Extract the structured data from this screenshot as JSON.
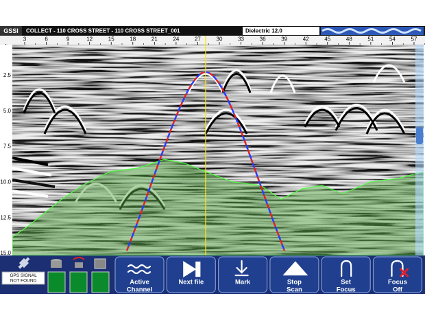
{
  "header": {
    "logo": "GSSI",
    "title": "COLLECT - 110 CROSS STREET - 110 CROSS STREET_001",
    "dielectric": "Dielectric 12.0"
  },
  "ruler": {
    "unit": "ft",
    "labels": [
      "3",
      "6",
      "9",
      "12",
      "15",
      "18",
      "21",
      "24",
      "27",
      "30",
      "33",
      "36",
      "39",
      "42",
      "45",
      "48",
      "51",
      "54",
      "57"
    ]
  },
  "depth_axis": {
    "labels": [
      "2.5",
      "5.0",
      "7.5",
      "10.0",
      "12.5",
      "15.0"
    ]
  },
  "status": {
    "gps": [
      "GPS SIGNAL",
      "NOT FOUND"
    ]
  },
  "buttons": [
    {
      "lines": [
        "Active",
        "Channel"
      ]
    },
    {
      "lines": [
        "Next file"
      ]
    },
    {
      "lines": [
        "Mark"
      ]
    },
    {
      "lines": [
        "Stop",
        "Scan"
      ]
    },
    {
      "lines": [
        "Set",
        "Focus"
      ]
    },
    {
      "lines": [
        "Focus",
        "Off"
      ]
    }
  ]
}
